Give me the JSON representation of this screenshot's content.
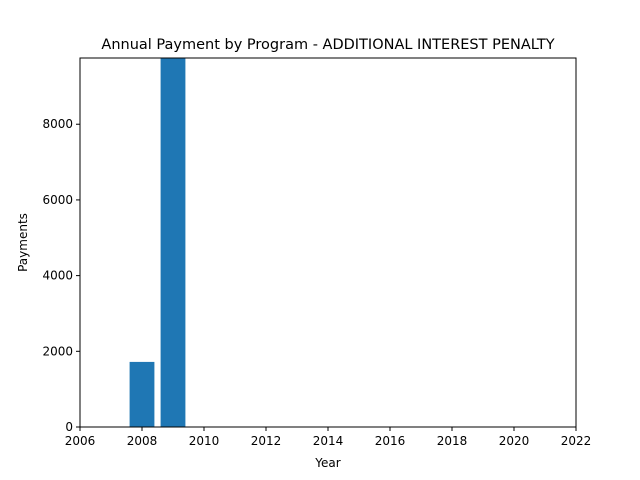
{
  "chart_data": {
    "type": "bar",
    "title": "Annual Payment by Program - ADDITIONAL INTEREST PENALTY",
    "xlabel": "Year",
    "ylabel": "Payments",
    "x": [
      2008,
      2009
    ],
    "values": [
      1720,
      9750
    ],
    "xlim": [
      2006,
      2022
    ],
    "ylim": [
      0,
      9750
    ],
    "xticks": [
      2006,
      2008,
      2010,
      2012,
      2014,
      2016,
      2018,
      2020,
      2022
    ],
    "yticks": [
      0,
      2000,
      4000,
      6000,
      8000
    ],
    "bar_width_years": 0.8,
    "bar_color": "#1f77b4",
    "grid": false,
    "legend": "none"
  }
}
